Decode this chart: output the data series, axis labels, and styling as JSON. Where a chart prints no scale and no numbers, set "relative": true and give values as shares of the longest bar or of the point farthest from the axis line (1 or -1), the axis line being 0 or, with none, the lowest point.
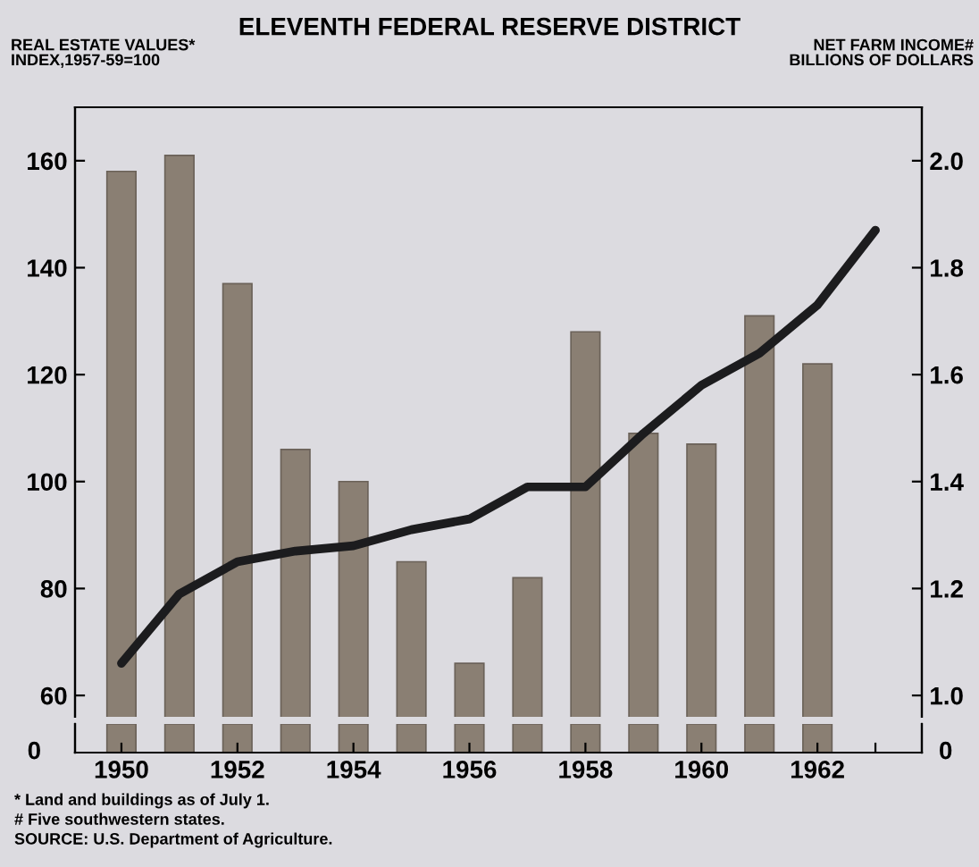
{
  "chart_data": [
    {
      "type": "bar",
      "title": "ELEVENTH FEDERAL RESERVE DISTRICT",
      "ylabel": "REAL ESTATE VALUES*\nINDEX,1957-59=100",
      "y2label": "NET FARM INCOME#\nBILLIONS OF DOLLARS",
      "series": [
        {
          "axis": "y2",
          "color": "#8a7f73",
          "x": [
            1950,
            1951,
            1952,
            1953,
            1954,
            1955,
            1956,
            1957,
            1958,
            1959,
            1960,
            1961,
            1962
          ],
          "values": [
            1.98,
            2.01,
            1.77,
            1.46,
            1.4,
            1.25,
            1.06,
            1.22,
            1.68,
            1.49,
            1.47,
            1.71,
            1.62
          ]
        },
        {
          "type": "line",
          "axis": "y",
          "color": "#1c1c1e",
          "x": [
            1950,
            1951,
            1952,
            1953,
            1954,
            1955,
            1956,
            1957,
            1958,
            1959,
            1960,
            1961,
            1962,
            1963
          ],
          "values": [
            66,
            79,
            85,
            87,
            88,
            91,
            93,
            99,
            99,
            109,
            118,
            124,
            133,
            147
          ]
        }
      ],
      "xlim": [
        1949.2,
        1963.8
      ],
      "tick_labels": "y",
      "ylim": [
        56,
        170
      ],
      "yticks": [
        60,
        80,
        100,
        120,
        140,
        160
      ],
      "y2lim": [
        0.96,
        2.1
      ],
      "y2ticks": [
        {
          "value": 1.0,
          "label": "1.0"
        },
        {
          "value": 1.2,
          "label": "1.2"
        },
        {
          "value": 1.4,
          "label": "1.4"
        },
        {
          "value": 1.6,
          "label": "1.6"
        },
        {
          "value": 1.8,
          "label": "1.8"
        },
        {
          "value": 2.0,
          "label": "2.0"
        }
      ],
      "grid": false,
      "legend": false,
      "annotations": [
        "* Land and buildings as of July 1.",
        "# Five southwestern states.",
        "SOURCE: U.S. Department of Agriculture."
      ]
    },
    {
      "type": "bar",
      "series": [
        {
          "color": "#8a7f73",
          "x": [
            1950,
            1951,
            1952,
            1953,
            1954,
            1955,
            1956,
            1957,
            1958,
            1959,
            1960,
            1961,
            1962
          ],
          "values": [
            1,
            1,
            1,
            1,
            1,
            1,
            1,
            1,
            1,
            1,
            1,
            1,
            1
          ]
        }
      ],
      "relative": true,
      "xlim": [
        1949.2,
        1963.8
      ],
      "xticks": [
        1950,
        1952,
        1954,
        1956,
        1958,
        1960,
        1962,
        {
          "value": 1963,
          "label": null
        }
      ],
      "grid": false,
      "legend": false,
      "annotations": [
        "0",
        "0"
      ]
    }
  ]
}
